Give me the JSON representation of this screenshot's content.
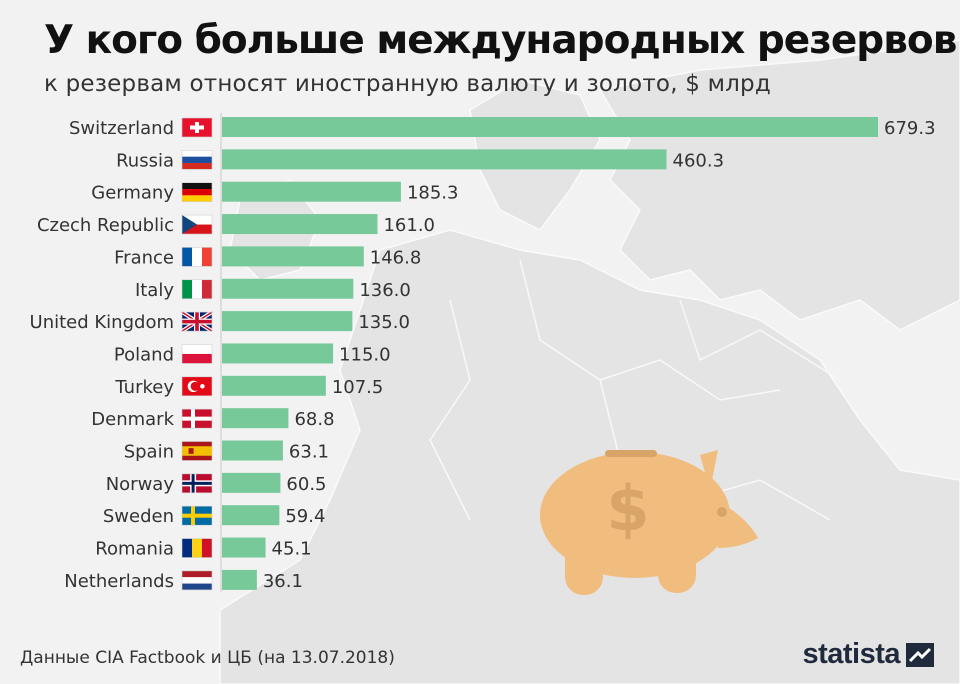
{
  "header": {
    "title": "У кого больше международных резервов",
    "subtitle": "к резервам относят иностранную валюту и золото, $ млрд"
  },
  "footer": {
    "source": "Данные CIA Factbook и ЦБ (на 13.07.2018)",
    "brand": "statista"
  },
  "colors": {
    "bar": "#78c99a",
    "background": "#f2f2f2",
    "piggy": "#f0bd7e",
    "piggy_dark": "#d8a468"
  },
  "icons": {
    "piggy": "piggy-bank-dollar-icon",
    "brand_logo": "statista-logo-icon"
  },
  "chart_data": {
    "type": "bar",
    "orientation": "horizontal",
    "categories": [
      "Switzerland",
      "Russia",
      "Germany",
      "Czech Republic",
      "France",
      "Italy",
      "United Kingdom",
      "Poland",
      "Turkey",
      "Denmark",
      "Spain",
      "Norway",
      "Sweden",
      "Romania",
      "Netherlands"
    ],
    "values": [
      679.3,
      460.3,
      185.3,
      161.0,
      146.8,
      136.0,
      135.0,
      115.0,
      107.5,
      68.8,
      63.1,
      60.5,
      59.4,
      45.1,
      36.1
    ],
    "value_labels": [
      "679.3",
      "460.3",
      "185.3",
      "161.0",
      "146.8",
      "136.0",
      "135.0",
      "115.0",
      "107.5",
      "68.8",
      "63.1",
      "60.5",
      "59.4",
      "45.1",
      "36.1"
    ],
    "flags": [
      "ch",
      "ru",
      "de",
      "cz",
      "fr",
      "it",
      "gb",
      "pl",
      "tr",
      "dk",
      "es",
      "no",
      "se",
      "ro",
      "nl"
    ],
    "xlim": [
      0,
      679.3
    ],
    "grid": false,
    "legend": "none"
  }
}
